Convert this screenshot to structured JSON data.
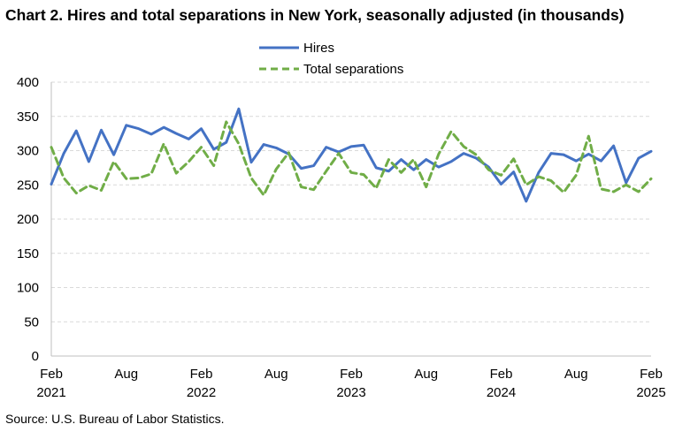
{
  "title": "Chart 2. Hires and total separations in New York, seasonally adjusted (in thousands)",
  "source": "Source: U.S. Bureau of Labor Statistics.",
  "chart_data": {
    "type": "line",
    "x_start": "2021-02",
    "x_tick_labels": [
      {
        "month": "Feb",
        "year": "2021"
      },
      {
        "month": "Aug",
        "year": ""
      },
      {
        "month": "Feb",
        "year": "2022"
      },
      {
        "month": "Aug",
        "year": ""
      },
      {
        "month": "Feb",
        "year": "2023"
      },
      {
        "month": "Aug",
        "year": ""
      },
      {
        "month": "Feb",
        "year": "2024"
      },
      {
        "month": "Aug",
        "year": ""
      },
      {
        "month": "Feb",
        "year": "2025"
      }
    ],
    "ylim": [
      0,
      400
    ],
    "y_ticks": [
      0,
      50,
      100,
      150,
      200,
      250,
      300,
      350,
      400
    ],
    "grid": "horizontal dashed",
    "legend_position": "top-center",
    "series": [
      {
        "name": "Hires",
        "color": "#4472c4",
        "style": "solid",
        "values": [
          251,
          296,
          329,
          284,
          330,
          294,
          337,
          332,
          324,
          334,
          325,
          317,
          332,
          302,
          312,
          361,
          283,
          309,
          304,
          295,
          274,
          278,
          305,
          298,
          306,
          308,
          275,
          270,
          287,
          272,
          287,
          276,
          284,
          296,
          289,
          276,
          251,
          269,
          226,
          268,
          296,
          294,
          285,
          295,
          285,
          307,
          253,
          289,
          299
        ]
      },
      {
        "name": "Total separations",
        "color": "#70ad47",
        "style": "dashed",
        "values": [
          305,
          260,
          238,
          249,
          242,
          284,
          259,
          260,
          266,
          310,
          267,
          284,
          305,
          278,
          342,
          310,
          260,
          235,
          273,
          297,
          247,
          243,
          270,
          296,
          268,
          265,
          245,
          287,
          268,
          287,
          247,
          295,
          328,
          306,
          294,
          272,
          264,
          288,
          250,
          262,
          256,
          239,
          264,
          321,
          244,
          240,
          250,
          240,
          259
        ]
      }
    ]
  }
}
